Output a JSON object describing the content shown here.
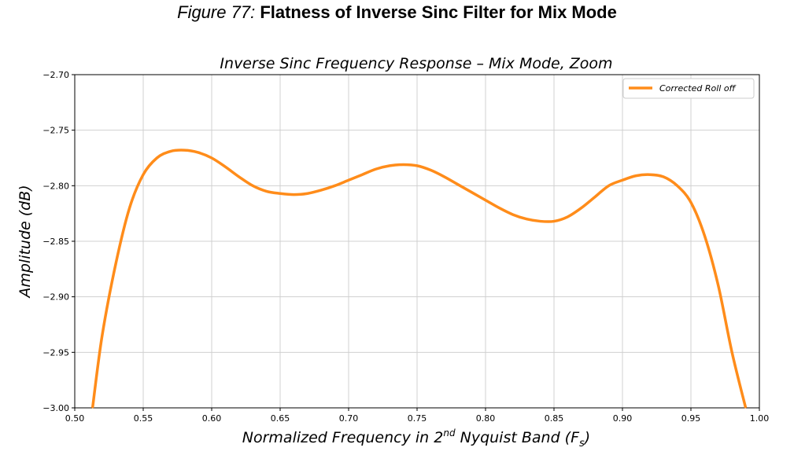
{
  "figure": {
    "label": "Figure 77:",
    "title": "Flatness of Inverse Sinc Filter for Mix Mode"
  },
  "chart_data": {
    "type": "line",
    "title": "Inverse Sinc Frequency Response – Mix Mode,  Zoom",
    "xlabel_parts": {
      "prefix": "Normalized Frequency in 2",
      "superscript": "nd",
      "middle": " Nyquist Band (F",
      "subscript": "s",
      "suffix": ")"
    },
    "ylabel": "Amplitude (dB)",
    "xlim": [
      0.5,
      1.0
    ],
    "ylim": [
      -3.0,
      -2.7
    ],
    "xticks": [
      0.5,
      0.55,
      0.6,
      0.65,
      0.7,
      0.75,
      0.8,
      0.85,
      0.9,
      0.95,
      1.0
    ],
    "xtick_labels": [
      "0.50",
      "0.55",
      "0.60",
      "0.65",
      "0.70",
      "0.75",
      "0.80",
      "0.85",
      "0.90",
      "0.95",
      "1.00"
    ],
    "yticks": [
      -3.0,
      -2.95,
      -2.9,
      -2.85,
      -2.8,
      -2.75,
      -2.7
    ],
    "ytick_labels": [
      "−3.00",
      "−2.95",
      "−2.90",
      "−2.85",
      "−2.80",
      "−2.75",
      "−2.70"
    ],
    "grid": true,
    "legend_position": "top-right",
    "series": [
      {
        "name": "Corrected Roll off",
        "color": "#ff8c1a",
        "x": [
          0.513,
          0.52,
          0.53,
          0.54,
          0.55,
          0.56,
          0.57,
          0.58,
          0.59,
          0.6,
          0.61,
          0.62,
          0.63,
          0.64,
          0.65,
          0.66,
          0.67,
          0.68,
          0.69,
          0.7,
          0.71,
          0.72,
          0.73,
          0.74,
          0.75,
          0.76,
          0.77,
          0.78,
          0.79,
          0.8,
          0.81,
          0.82,
          0.83,
          0.84,
          0.85,
          0.86,
          0.87,
          0.88,
          0.89,
          0.9,
          0.91,
          0.92,
          0.93,
          0.94,
          0.95,
          0.96,
          0.97,
          0.98,
          0.99
        ],
        "y": [
          -3.0,
          -2.935,
          -2.87,
          -2.82,
          -2.79,
          -2.775,
          -2.769,
          -2.768,
          -2.77,
          -2.775,
          -2.783,
          -2.792,
          -2.8,
          -2.805,
          -2.807,
          -2.808,
          -2.807,
          -2.804,
          -2.8,
          -2.795,
          -2.79,
          -2.785,
          -2.782,
          -2.781,
          -2.782,
          -2.786,
          -2.792,
          -2.799,
          -2.806,
          -2.813,
          -2.82,
          -2.826,
          -2.83,
          -2.832,
          -2.832,
          -2.828,
          -2.82,
          -2.81,
          -2.8,
          -2.795,
          -2.791,
          -2.79,
          -2.792,
          -2.8,
          -2.815,
          -2.845,
          -2.89,
          -2.95,
          -3.0
        ]
      }
    ]
  }
}
